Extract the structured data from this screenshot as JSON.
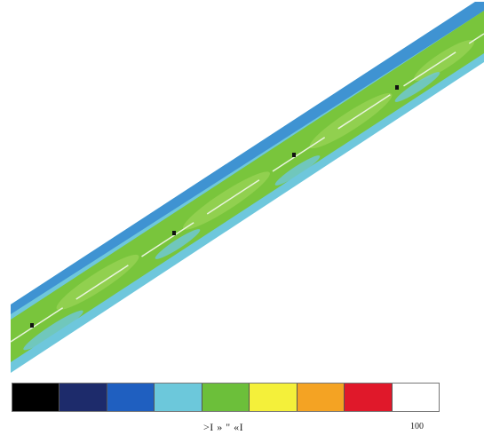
{
  "diagram": {
    "band_colors": {
      "edge": "#63c9dc",
      "edge_dark": "#3d8fd0",
      "core": "#7cc63a",
      "core_light": "#9bd455",
      "centerline": "#e6f2da",
      "marker": "#111111"
    },
    "markers_count": 4
  },
  "legend": {
    "colors": [
      "#000000",
      "#1d2b6b",
      "#1f5fc0",
      "#6cc8db",
      "#6cbf3a",
      "#f4f03a",
      "#f4a323",
      "#e0182a",
      "#ffffff"
    ],
    "scale_marks_text": ">I » \" «I",
    "max_label": "100"
  }
}
